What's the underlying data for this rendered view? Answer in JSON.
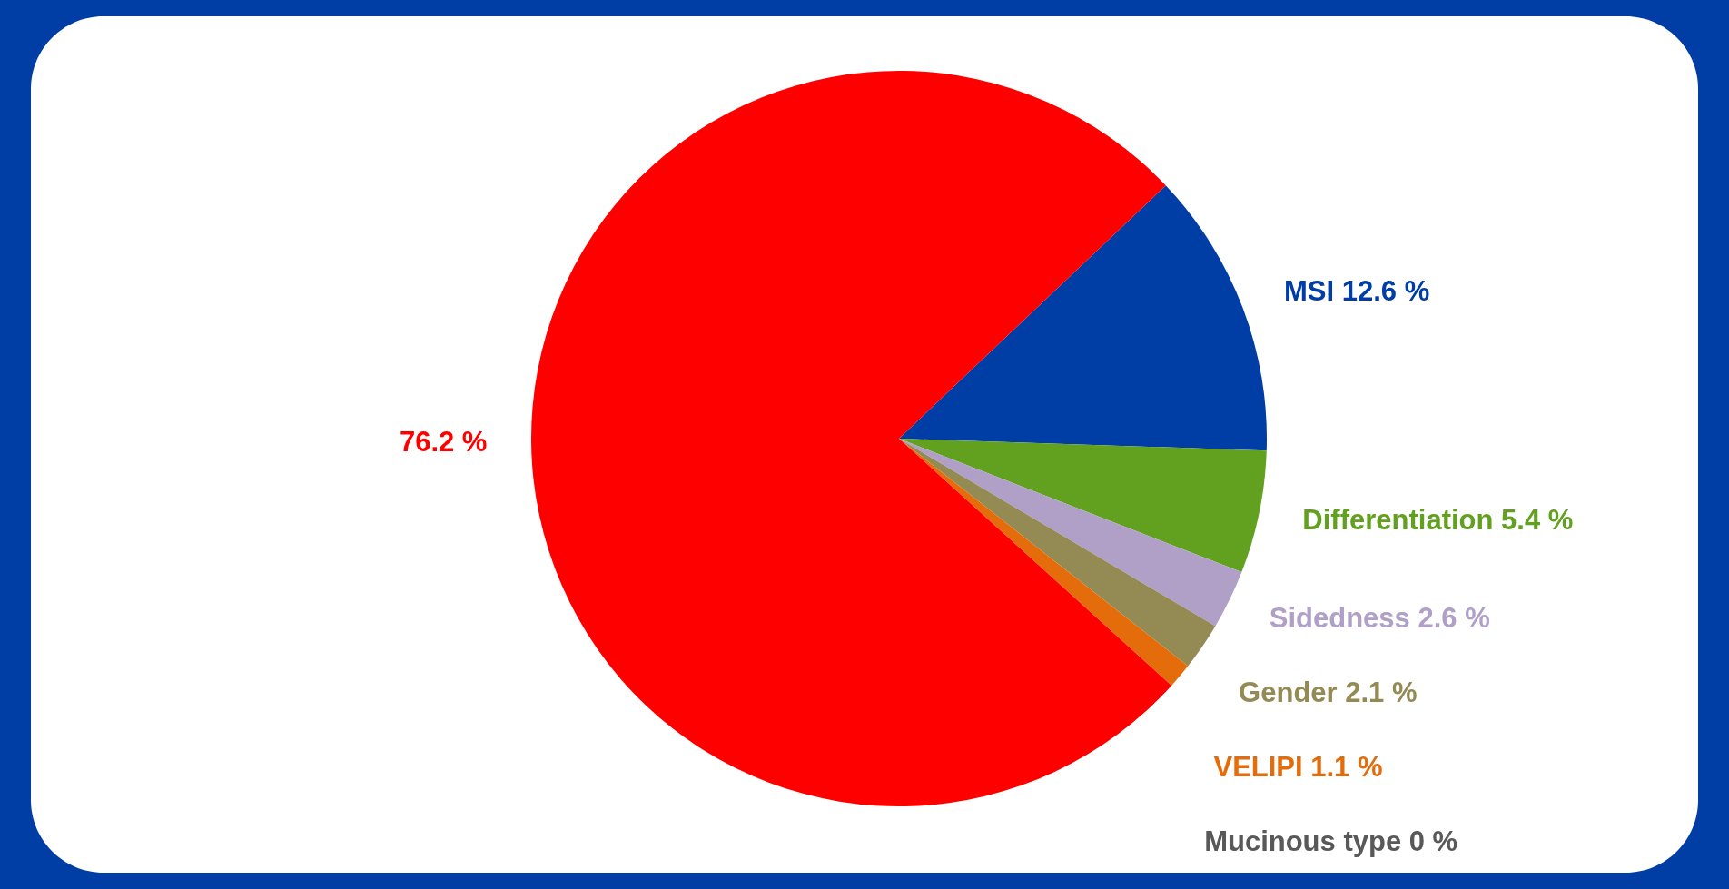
{
  "chart_data": {
    "type": "pie",
    "categories": [
      "MSI",
      "Differentiation",
      "Sidedness",
      "Gender",
      "VELIPI",
      "Mucinous type",
      null
    ],
    "values": [
      12.6,
      5.4,
      2.6,
      2.1,
      1.1,
      0,
      76.2
    ],
    "colors": [
      "#003da5",
      "#62a020",
      "#b0a0c8",
      "#948a54",
      "#e46c0a",
      "#595959",
      "#ff0000"
    ],
    "value_labels": [
      "12.6 %",
      "5.4 %",
      "2.6 %",
      "2.1 %",
      "1.1 %",
      "0 %",
      "76.2 %"
    ]
  }
}
